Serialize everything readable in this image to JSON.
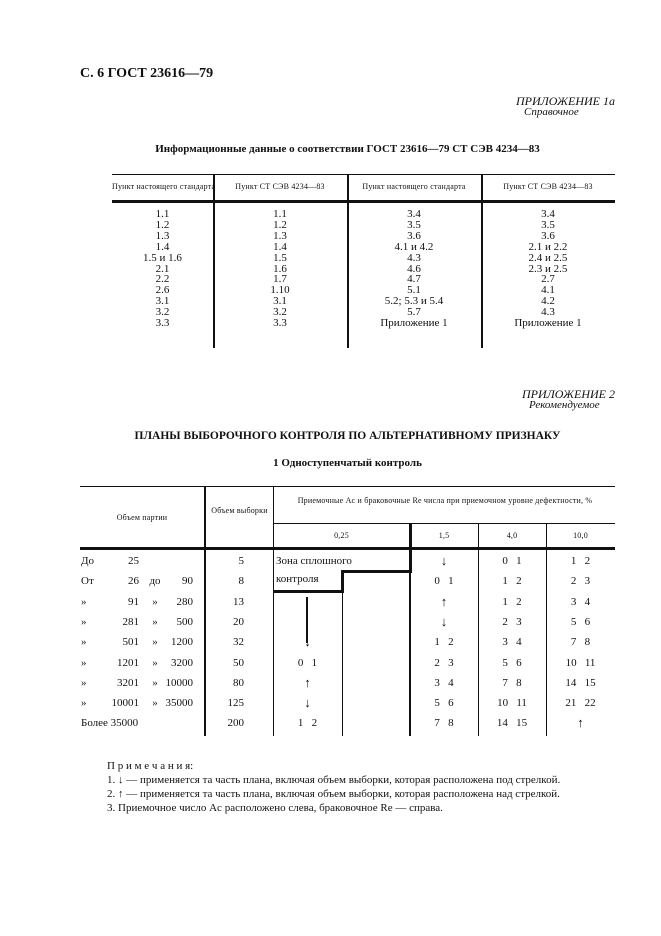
{
  "header": {
    "page_label": "С. 6 ГОСТ 23616—79"
  },
  "appendix1": {
    "title": "ПРИЛОЖЕНИЕ 1а",
    "subtitle": "Справочное",
    "heading": "Информационные данные о соответствии ГОСТ 23616—79 СТ СЭВ 4234—83"
  },
  "table1": {
    "headers": [
      "Пункт настоящего стандарта",
      "Пункт СТ СЭВ 4234—83",
      "Пункт настоящего стандарта",
      "Пункт СТ СЭВ 4234—83"
    ],
    "columns": [
      [
        "1.1",
        "1.2",
        "1.3",
        "1.4",
        "1.5 и 1.6",
        "2.1",
        "2.2",
        "2.6",
        "3.1",
        "3.2",
        "3.3"
      ],
      [
        "1.1",
        "1.2",
        "1.3",
        "1.4",
        "1.5",
        "1.6",
        "1.7",
        "1.10",
        "3.1",
        "3.2",
        "3.3"
      ],
      [
        "3.4",
        "3.5",
        "3.6",
        "4.1 и 4.2",
        "4.3",
        "4.6",
        "4.7",
        "5.1",
        "5.2; 5.3 и 5.4",
        "5.7",
        "Приложение 1"
      ],
      [
        "3.4",
        "3.5",
        "3.6",
        "2.1 и 2.2",
        "2.4 и 2.5",
        "2.3 и 2.5",
        "2.7",
        "4.1",
        "4.2",
        "4.3",
        "Приложение 1"
      ]
    ]
  },
  "appendix2": {
    "title": "ПРИЛОЖЕНИЕ 2",
    "subtitle": "Рекомендуемое",
    "heading": "ПЛАНЫ ВЫБОРОЧНОГО КОНТРОЛЯ ПО АЛЬТЕРНАТИВНОМУ ПРИЗНАКУ",
    "section": "1 Одноступенчатый контроль"
  },
  "table2": {
    "header_lot": "Объем партии",
    "header_sample": "Объем выборки",
    "header_levels": "Приемочные Ac и браковочные Re числа при приемочном уровне дефектности, %",
    "levels": [
      "0,25",
      "1,5",
      "4,0",
      "10,0"
    ],
    "zone_label_1": "Зона сплошного",
    "zone_label_2": "контроля",
    "rows": [
      {
        "lot": [
          "До",
          "25",
          "",
          ""
        ],
        "sample": "5",
        "v025": "",
        "v15": "↓",
        "v40": "0   1",
        "v100": "1   2"
      },
      {
        "lot": [
          "От",
          "26",
          "до",
          "90"
        ],
        "sample": "8",
        "v025": "",
        "v15": "0   1",
        "v40": "1   2",
        "v100": "2   3"
      },
      {
        "lot": [
          "»",
          "91",
          "»",
          "280"
        ],
        "sample": "13",
        "v025": "",
        "v15": "↑",
        "v40": "1   2",
        "v100": "3   4"
      },
      {
        "lot": [
          "»",
          "281",
          "»",
          "500"
        ],
        "sample": "20",
        "v025": "",
        "v15": "↓",
        "v40": "2   3",
        "v100": "5   6"
      },
      {
        "lot": [
          "»",
          "501",
          "»",
          "1200"
        ],
        "sample": "32",
        "v025": "↓",
        "v15": "1   2",
        "v40": "3   4",
        "v100": "7   8"
      },
      {
        "lot": [
          "»",
          "1201",
          "»",
          "3200"
        ],
        "sample": "50",
        "v025": "0   1",
        "v15": "2   3",
        "v40": "5   6",
        "v100": "10   11"
      },
      {
        "lot": [
          "»",
          "3201",
          "»",
          "10000"
        ],
        "sample": "80",
        "v025": "↑",
        "v15": "3   4",
        "v40": "7   8",
        "v100": "14   15"
      },
      {
        "lot": [
          "»",
          "10001",
          "»",
          "35000"
        ],
        "sample": "125",
        "v025": "↓",
        "v15": "5   6",
        "v40": "10   11",
        "v100": "21   22"
      },
      {
        "lot": [
          "Более 35000",
          "",
          "",
          ""
        ],
        "sample": "200",
        "v025": "1   2",
        "v15": "7   8",
        "v40": "14   15",
        "v100": "↑"
      }
    ]
  },
  "notes": {
    "title": "П р и м е ч а н и я:",
    "items": [
      "1. ↓ — применяется та часть плана, включая объем выборки, которая расположена под стрелкой.",
      "2. ↑ — применяется та часть плана, включая объем выборки, которая расположена над стрелкой.",
      "3. Приемочное число Ac расположено слева, браковочное Re — справа."
    ]
  }
}
